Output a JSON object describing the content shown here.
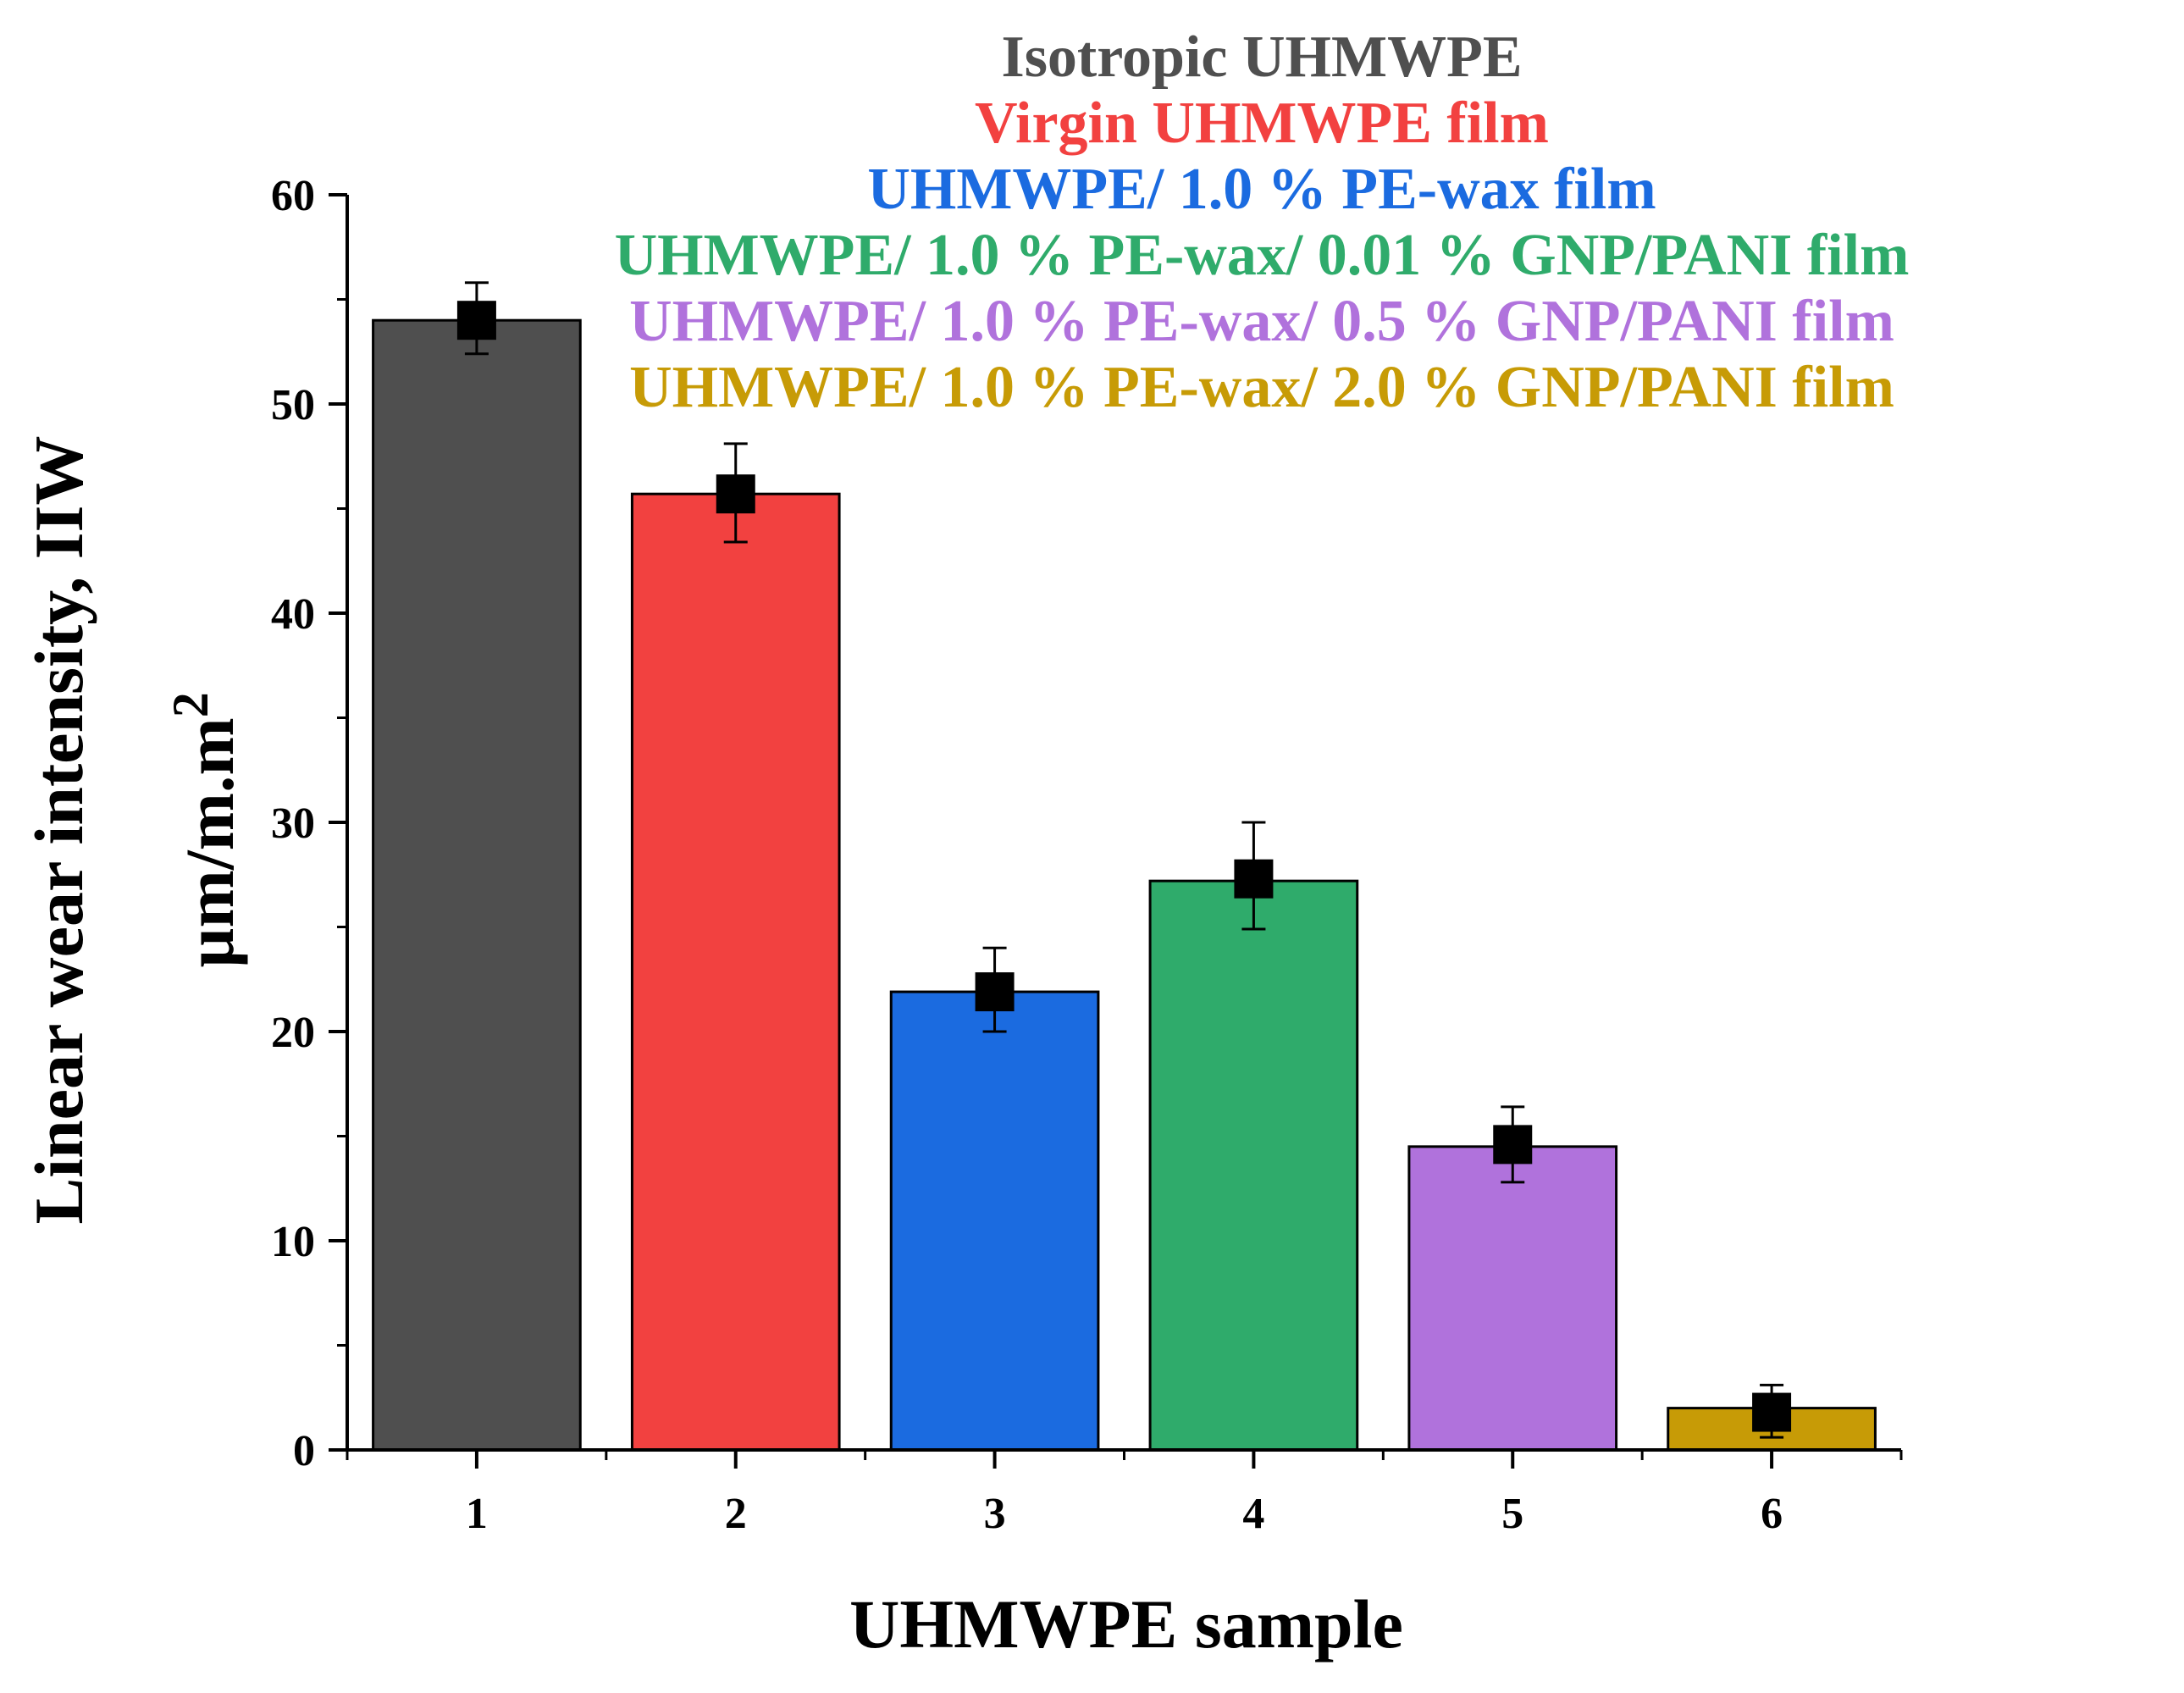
{
  "chart_data": {
    "type": "bar",
    "title": "",
    "xlabel": "UHMWPE sample",
    "ylabel_line1": "Linear wear intensity, IIW",
    "ylabel_line2": "µm/m.m",
    "ylabel_superscript": "2",
    "ylim": [
      0,
      60
    ],
    "y_ticks": [
      0,
      10,
      20,
      30,
      40,
      50,
      60
    ],
    "y_tick_labels": [
      "0",
      "10",
      "20",
      "30",
      "40",
      "50",
      "60"
    ],
    "categories": [
      "1",
      "2",
      "3",
      "4",
      "5",
      "6"
    ],
    "values": [
      54.0,
      45.7,
      21.9,
      27.3,
      14.6,
      1.8
    ],
    "bar_heights": [
      54.0,
      45.7,
      21.9,
      27.2,
      14.5,
      2.0
    ],
    "error_upper": [
      55.8,
      48.1,
      24.0,
      30.0,
      16.4,
      3.1
    ],
    "error_lower": [
      52.4,
      43.4,
      20.0,
      24.9,
      12.8,
      0.6
    ],
    "colors": [
      "#4f4f4f",
      "#f24140",
      "#1b6be0",
      "#2fab6b",
      "#b072dc",
      "#c79b06"
    ],
    "legend": [
      {
        "label": "Isotropic UHMWPE",
        "color": "#4f4f4f"
      },
      {
        "label": "Virgin UHMWPE film",
        "color": "#f24140"
      },
      {
        "label": "UHMWPE/ 1.0 % PE-wax film",
        "color": "#1b6be0"
      },
      {
        "label": "UHMWPE/ 1.0 % PE-wax/ 0.01 % GNP/PANI film",
        "color": "#2fab6b"
      },
      {
        "label": "UHMWPE/ 1.0 % PE-wax/ 0.5 % GNP/PANI film",
        "color": "#b072dc"
      },
      {
        "label": "UHMWPE/ 1.0 % PE-wax/ 2.0 % GNP/PANI film",
        "color": "#c79b06"
      }
    ],
    "legend_position": "top-right",
    "grid": false,
    "marker": "square",
    "marker_color": "#000000"
  }
}
